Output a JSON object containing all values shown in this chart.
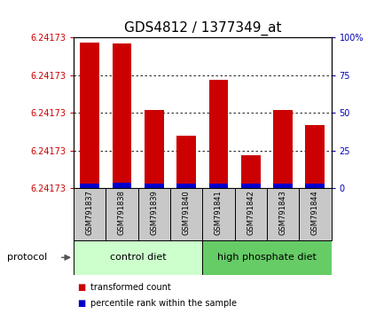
{
  "title": "GDS4812 / 1377349_at",
  "samples": [
    "GSM791837",
    "GSM791838",
    "GSM791839",
    "GSM791840",
    "GSM791841",
    "GSM791842",
    "GSM791843",
    "GSM791844"
  ],
  "red_bar_heights_pct": [
    97,
    96,
    52,
    35,
    72,
    22,
    52,
    42
  ],
  "blue_bar_heights_pct": [
    3,
    4,
    3,
    3,
    3,
    3,
    3,
    3
  ],
  "y_left_ticks": [
    0,
    25,
    50,
    75,
    100
  ],
  "y_left_labels": [
    "6.24173",
    "6.24173",
    "6.24173",
    "6.24173",
    "6.24173"
  ],
  "y_right_labels": [
    "0",
    "25",
    "50",
    "75",
    "100%"
  ],
  "groups": [
    {
      "label": "control diet",
      "sample_range": [
        0,
        3
      ],
      "color": "#ccffcc"
    },
    {
      "label": "high phosphate diet",
      "sample_range": [
        4,
        7
      ],
      "color": "#66cc66"
    }
  ],
  "protocol_label": "protocol",
  "bar_color_red": "#cc0000",
  "bar_color_blue": "#0000cc",
  "tick_label_color_left": "#cc0000",
  "tick_label_color_right": "#0000bb",
  "title_fontsize": 11,
  "xlabel_area_color": "#c8c8c8",
  "legend_red_label": "transformed count",
  "legend_blue_label": "percentile rank within the sample"
}
